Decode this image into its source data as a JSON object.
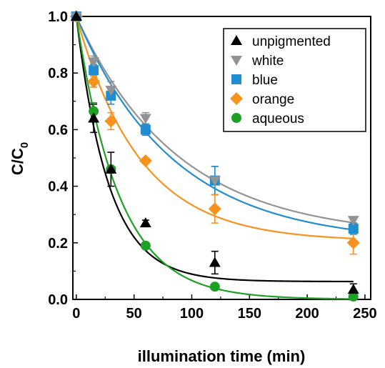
{
  "chart_data": {
    "type": "scatter",
    "xlabel": "illumination time (min)",
    "ylabel": "C/C",
    "ylabel_sub": "0",
    "xlim": [
      -3,
      255
    ],
    "ylim": [
      0,
      1.0
    ],
    "xticks": [
      0,
      50,
      100,
      150,
      200,
      250
    ],
    "yticks": [
      0.0,
      0.2,
      0.4,
      0.6,
      0.8,
      1.0
    ],
    "xtick_labels": [
      "0",
      "50",
      "100",
      "150",
      "200",
      "250"
    ],
    "ytick_labels": [
      "0.0",
      "0.2",
      "0.4",
      "0.6",
      "0.8",
      "1.0"
    ],
    "grid": false,
    "legend_position": "top-right",
    "series": [
      {
        "name": "unpigmented",
        "color": "#000000",
        "marker": "triangle-up",
        "x": [
          0,
          15,
          30,
          60,
          120,
          240
        ],
        "y": [
          1.0,
          0.64,
          0.46,
          0.27,
          0.13,
          0.035
        ],
        "err": [
          0,
          0.05,
          0.06,
          0.01,
          0.04,
          0.02
        ],
        "fit": {
          "y0": 0.063,
          "A": 0.937,
          "tau": 28
        }
      },
      {
        "name": "white",
        "color": "#939393",
        "marker": "triangle-down",
        "x": [
          0,
          15,
          30,
          60,
          120,
          240
        ],
        "y": [
          1.0,
          0.84,
          0.74,
          0.64,
          0.42,
          0.28
        ],
        "err": [
          0,
          0.02,
          0.03,
          0.02,
          0.05,
          0.01
        ],
        "fit": {
          "y0": 0.22,
          "A": 0.78,
          "tau": 88
        }
      },
      {
        "name": "blue",
        "color": "#1F8DD1",
        "marker": "square",
        "x": [
          0,
          15,
          30,
          60,
          120,
          240
        ],
        "y": [
          1.0,
          0.81,
          0.72,
          0.6,
          0.42,
          0.25
        ],
        "err": [
          0,
          0.02,
          0.03,
          0.02,
          0.05,
          0.02
        ],
        "fit": {
          "y0": 0.2,
          "A": 0.8,
          "tau": 84
        }
      },
      {
        "name": "orange",
        "color": "#F7921E",
        "marker": "diamond",
        "x": [
          0,
          15,
          30,
          60,
          120,
          240
        ],
        "y": [
          1.0,
          0.77,
          0.63,
          0.49,
          0.32,
          0.2
        ],
        "err": [
          0,
          0.02,
          0.03,
          0.01,
          0.05,
          0.04
        ],
        "fit": {
          "y0": 0.205,
          "A": 0.795,
          "tau": 55
        }
      },
      {
        "name": "aqueous",
        "color": "#1DA124",
        "marker": "circle",
        "x": [
          0,
          15,
          30,
          60,
          120,
          240
        ],
        "y": [
          1.0,
          0.665,
          0.46,
          0.19,
          0.045,
          0.01
        ],
        "err": [
          0,
          0.03,
          0.0,
          0.0,
          0.0,
          0.0
        ],
        "fit": {
          "y0": 0.0,
          "A": 1.0,
          "tau": 37
        }
      }
    ]
  }
}
